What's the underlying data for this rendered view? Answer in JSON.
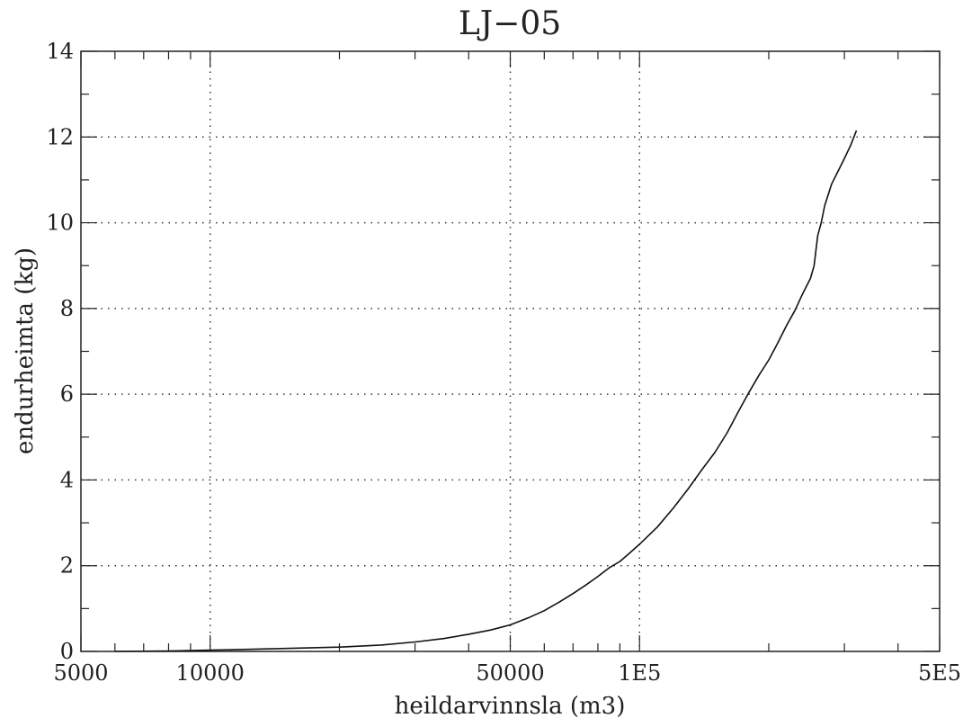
{
  "chart_data": {
    "type": "line",
    "title": "LJ−05",
    "xlabel": "heildarvinnsla (m3)",
    "ylabel": "endurheimta (kg)",
    "xscale": "log",
    "xlim": [
      5000,
      500000
    ],
    "ylim": [
      0,
      14
    ],
    "grid": true,
    "x_tick_labels": [
      {
        "value": 5000,
        "label": "5000"
      },
      {
        "value": 10000,
        "label": "10000"
      },
      {
        "value": 50000,
        "label": "50000"
      },
      {
        "value": 100000,
        "label": "1E5"
      },
      {
        "value": 500000,
        "label": "5E5"
      }
    ],
    "x_minor_ticks": [
      6000,
      7000,
      8000,
      9000,
      20000,
      30000,
      40000,
      60000,
      70000,
      80000,
      90000,
      200000,
      300000,
      400000
    ],
    "x_grid": [
      10000,
      50000,
      100000
    ],
    "y_tick_labels": [
      {
        "value": 0,
        "label": "0"
      },
      {
        "value": 2,
        "label": "2"
      },
      {
        "value": 4,
        "label": "4"
      },
      {
        "value": 6,
        "label": "6"
      },
      {
        "value": 8,
        "label": "8"
      },
      {
        "value": 10,
        "label": "10"
      },
      {
        "value": 12,
        "label": "12"
      },
      {
        "value": 14,
        "label": "14"
      }
    ],
    "y_minor_ticks": [
      1,
      3,
      5,
      7,
      9,
      11,
      13
    ],
    "y_grid": [
      2,
      4,
      6,
      8,
      10,
      12
    ],
    "series": [
      {
        "points": [
          [
            6000,
            0.0
          ],
          [
            8000,
            0.01
          ],
          [
            10000,
            0.03
          ],
          [
            15000,
            0.07
          ],
          [
            20000,
            0.1
          ],
          [
            25000,
            0.15
          ],
          [
            30000,
            0.22
          ],
          [
            35000,
            0.3
          ],
          [
            40000,
            0.4
          ],
          [
            45000,
            0.5
          ],
          [
            50000,
            0.62
          ],
          [
            55000,
            0.78
          ],
          [
            60000,
            0.95
          ],
          [
            65000,
            1.15
          ],
          [
            70000,
            1.35
          ],
          [
            75000,
            1.55
          ],
          [
            80000,
            1.75
          ],
          [
            85000,
            1.95
          ],
          [
            90000,
            2.1
          ],
          [
            95000,
            2.3
          ],
          [
            100000,
            2.5
          ],
          [
            110000,
            2.9
          ],
          [
            120000,
            3.35
          ],
          [
            130000,
            3.8
          ],
          [
            140000,
            4.25
          ],
          [
            150000,
            4.65
          ],
          [
            160000,
            5.1
          ],
          [
            170000,
            5.6
          ],
          [
            180000,
            6.05
          ],
          [
            190000,
            6.45
          ],
          [
            200000,
            6.8
          ],
          [
            210000,
            7.2
          ],
          [
            220000,
            7.6
          ],
          [
            230000,
            7.95
          ],
          [
            240000,
            8.35
          ],
          [
            250000,
            8.7
          ],
          [
            255000,
            9.0
          ],
          [
            260000,
            9.7
          ],
          [
            265000,
            10.0
          ],
          [
            270000,
            10.4
          ],
          [
            280000,
            10.9
          ],
          [
            290000,
            11.2
          ],
          [
            300000,
            11.5
          ],
          [
            310000,
            11.8
          ],
          [
            320000,
            12.15
          ]
        ]
      }
    ]
  }
}
